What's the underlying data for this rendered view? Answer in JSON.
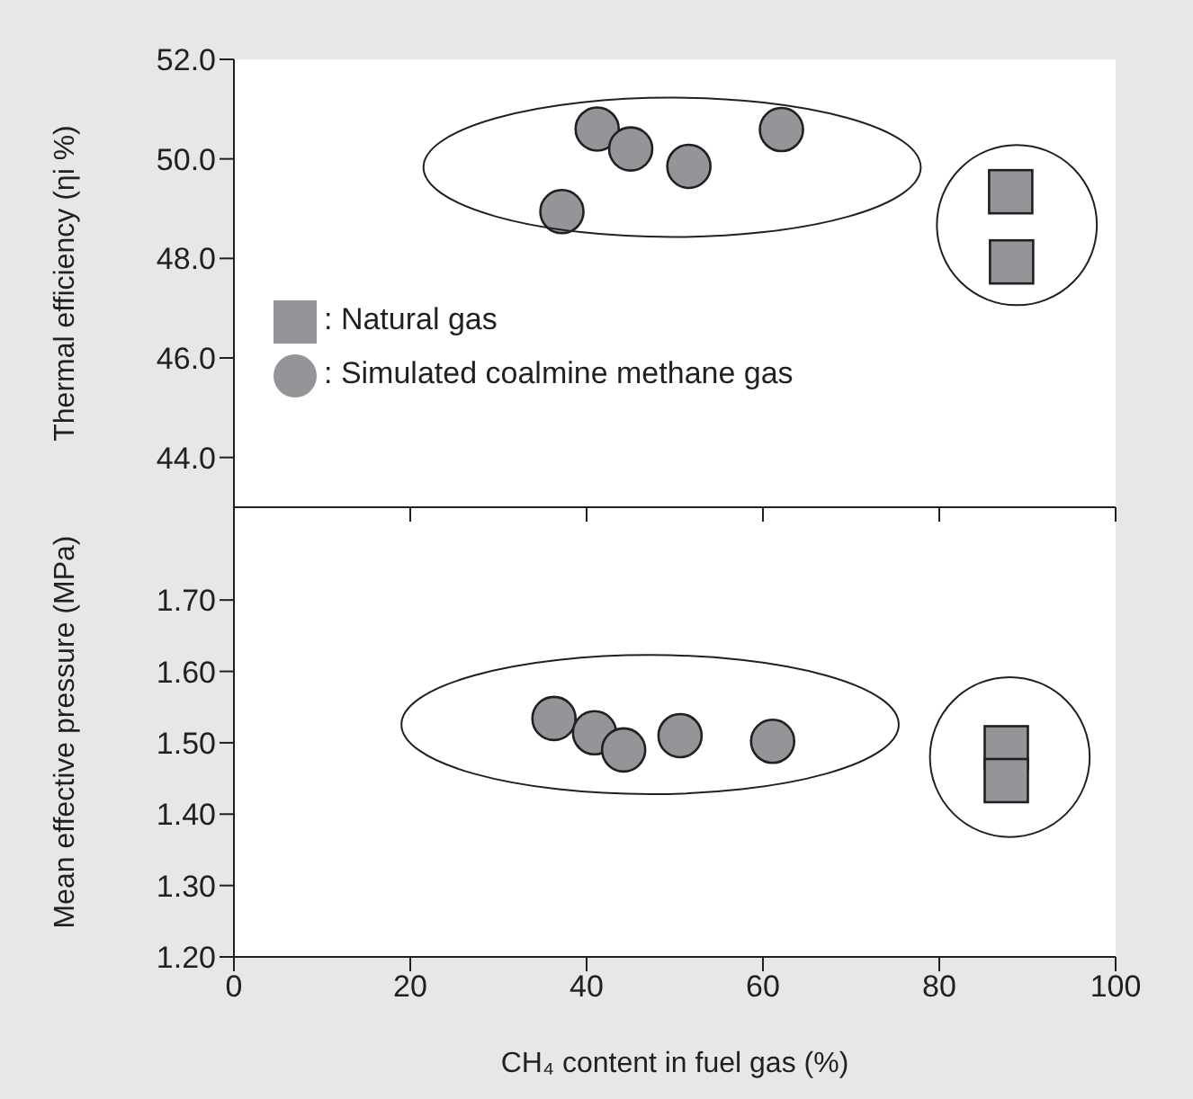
{
  "chart_data": [
    {
      "type": "scatter",
      "ylabel": "Thermal efficiency (ηi %)",
      "xlim": [
        0,
        100
      ],
      "xticks": [
        {
          "value": 0,
          "label": null
        },
        {
          "value": 20,
          "label": null
        },
        {
          "value": 40,
          "label": null
        },
        {
          "value": 60,
          "label": null
        },
        {
          "value": 80,
          "label": null
        },
        {
          "value": 100,
          "label": null
        }
      ],
      "ylim": [
        43,
        52
      ],
      "yticks": [
        {
          "value": 44,
          "label": "44.0"
        },
        {
          "value": 46,
          "label": "46.0"
        },
        {
          "value": 48,
          "label": "48.0"
        },
        {
          "value": 50,
          "label": "50.0"
        },
        {
          "value": 52,
          "label": "52.0"
        }
      ],
      "tick_labels": "y",
      "legend": "bottom left",
      "series": [
        {
          "name": ": Natural gas",
          "color": "#939598",
          "marker": "square",
          "x": [
            88.1,
            88.2
          ],
          "values": [
            49.34,
            47.93
          ]
        },
        {
          "name": ": Simulated coalmine methane gas",
          "color": "#939598",
          "marker": "circle",
          "x": [
            37.2,
            41.2,
            45.0,
            51.6,
            62.1
          ],
          "values": [
            48.94,
            50.6,
            50.2,
            49.85,
            50.59
          ]
        }
      ]
    },
    {
      "type": "scatter",
      "xlabel": "CH₄ content in fuel gas (%)",
      "ylabel": "Mean effective pressure (MPa)",
      "xlim": [
        0,
        100
      ],
      "xticks": [
        0,
        20,
        40,
        60,
        80,
        100
      ],
      "ylim": [
        1.2,
        1.83
      ],
      "yticks": [
        {
          "value": 1.2,
          "label": "1.20"
        },
        {
          "value": 1.3,
          "label": "1.30"
        },
        {
          "value": 1.4,
          "label": "1.40"
        },
        {
          "value": 1.5,
          "label": "1.50"
        },
        {
          "value": 1.6,
          "label": "1.60"
        },
        {
          "value": 1.7,
          "label": "1.70"
        }
      ],
      "series": [
        {
          "color": "#939598",
          "marker": "square",
          "x": [
            87.6,
            87.6
          ],
          "values": [
            1.493,
            1.447
          ]
        },
        {
          "color": "#939598",
          "marker": "circle",
          "x": [
            36.3,
            40.9,
            44.2,
            50.6,
            61.1
          ],
          "values": [
            1.534,
            1.514,
            1.49,
            1.51,
            1.502
          ]
        }
      ]
    }
  ]
}
